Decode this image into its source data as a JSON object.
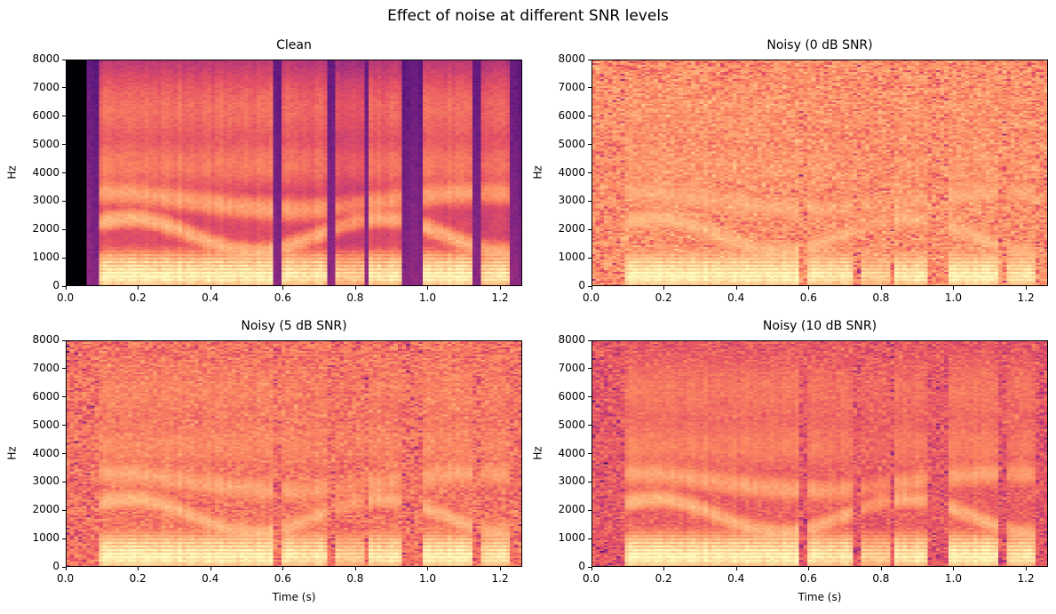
{
  "chart_data": [
    {
      "type": "heatmap",
      "title": "Clean",
      "xlabel": "",
      "ylabel": "Hz",
      "xlim": [
        0,
        1.26
      ],
      "ylim": [
        0,
        8000
      ],
      "colormap": "magma",
      "snr_db": null,
      "xticks": [
        "0.0",
        "0.2",
        "0.4",
        "0.6",
        "0.8",
        "1.0",
        "1.2"
      ],
      "yticks": [
        "0",
        "1000",
        "2000",
        "3000",
        "4000",
        "5000",
        "6000",
        "7000",
        "8000"
      ]
    },
    {
      "type": "heatmap",
      "title": "Noisy (0 dB SNR)",
      "xlabel": "",
      "ylabel": "Hz",
      "xlim": [
        0,
        1.26
      ],
      "ylim": [
        0,
        8000
      ],
      "colormap": "magma",
      "snr_db": 0,
      "xticks": [
        "0.0",
        "0.2",
        "0.4",
        "0.6",
        "0.8",
        "1.0",
        "1.2"
      ],
      "yticks": [
        "0",
        "1000",
        "2000",
        "3000",
        "4000",
        "5000",
        "6000",
        "7000",
        "8000"
      ]
    },
    {
      "type": "heatmap",
      "title": "Noisy (5 dB SNR)",
      "xlabel": "Time (s)",
      "ylabel": "Hz",
      "xlim": [
        0,
        1.26
      ],
      "ylim": [
        0,
        8000
      ],
      "colormap": "magma",
      "snr_db": 5,
      "xticks": [
        "0.0",
        "0.2",
        "0.4",
        "0.6",
        "0.8",
        "1.0",
        "1.2"
      ],
      "yticks": [
        "0",
        "1000",
        "2000",
        "3000",
        "4000",
        "5000",
        "6000",
        "7000",
        "8000"
      ]
    },
    {
      "type": "heatmap",
      "title": "Noisy (10 dB SNR)",
      "xlabel": "Time (s)",
      "ylabel": "Hz",
      "xlim": [
        0,
        1.26
      ],
      "ylim": [
        0,
        8000
      ],
      "colormap": "magma",
      "snr_db": 10,
      "xticks": [
        "0.0",
        "0.2",
        "0.4",
        "0.6",
        "0.8",
        "1.0",
        "1.2"
      ],
      "yticks": [
        "0",
        "1000",
        "2000",
        "3000",
        "4000",
        "5000",
        "6000",
        "7000",
        "8000"
      ]
    }
  ],
  "figure": {
    "suptitle": "Effect of noise at different SNR levels"
  }
}
